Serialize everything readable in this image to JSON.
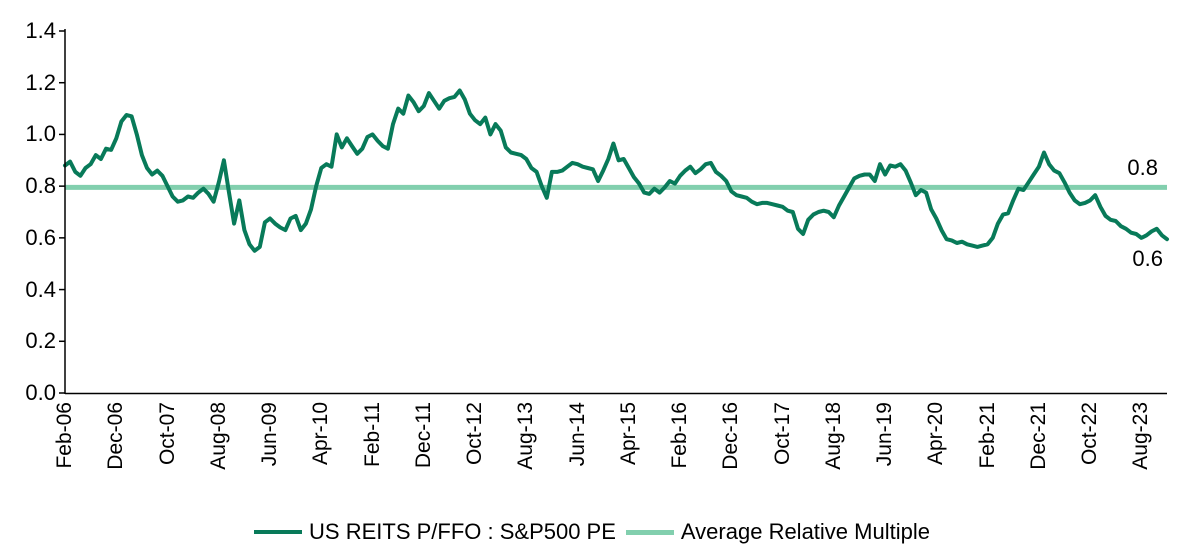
{
  "chart_data": {
    "type": "line",
    "title": "",
    "x": {
      "unit": "month",
      "start": "Feb-2006",
      "end": "Jan-2024",
      "points_per_tick": 10,
      "tick_labels": [
        "Feb-06",
        "Dec-06",
        "Oct-07",
        "Aug-08",
        "Jun-09",
        "Apr-10",
        "Feb-11",
        "Dec-11",
        "Oct-12",
        "Aug-13",
        "Jun-14",
        "Apr-15",
        "Feb-16",
        "Dec-16",
        "Oct-17",
        "Aug-18",
        "Jun-19",
        "Apr-20",
        "Feb-21",
        "Dec-21",
        "Oct-22",
        "Aug-23"
      ]
    },
    "y": {
      "min": 0.0,
      "max": 1.4,
      "tick_step": 0.2,
      "tick_labels": [
        "0.0",
        "0.2",
        "0.4",
        "0.6",
        "0.8",
        "1.0",
        "1.2",
        "1.4"
      ]
    },
    "grid": false,
    "legend_position": "bottom",
    "axis_color": "#000000",
    "series": [
      {
        "name": "US REITS P/FFO : S&P500 PE",
        "type": "line",
        "color": "#087a59",
        "stroke_width": 4,
        "values": [
          0.88,
          0.895,
          0.855,
          0.84,
          0.87,
          0.885,
          0.92,
          0.905,
          0.945,
          0.94,
          0.985,
          1.05,
          1.075,
          1.07,
          1.0,
          0.92,
          0.87,
          0.845,
          0.86,
          0.84,
          0.8,
          0.76,
          0.74,
          0.745,
          0.76,
          0.755,
          0.775,
          0.79,
          0.77,
          0.74,
          0.815,
          0.9,
          0.775,
          0.655,
          0.745,
          0.63,
          0.575,
          0.55,
          0.565,
          0.66,
          0.675,
          0.655,
          0.64,
          0.63,
          0.675,
          0.685,
          0.63,
          0.655,
          0.71,
          0.8,
          0.87,
          0.885,
          0.875,
          1.0,
          0.95,
          0.985,
          0.955,
          0.925,
          0.945,
          0.99,
          1.0,
          0.975,
          0.955,
          0.945,
          1.04,
          1.1,
          1.08,
          1.15,
          1.125,
          1.09,
          1.11,
          1.16,
          1.13,
          1.1,
          1.13,
          1.14,
          1.145,
          1.17,
          1.135,
          1.08,
          1.055,
          1.04,
          1.065,
          1.0,
          1.04,
          1.015,
          0.95,
          0.93,
          0.925,
          0.92,
          0.905,
          0.87,
          0.855,
          0.8,
          0.755,
          0.855,
          0.855,
          0.86,
          0.875,
          0.89,
          0.885,
          0.875,
          0.87,
          0.865,
          0.82,
          0.86,
          0.905,
          0.965,
          0.9,
          0.905,
          0.87,
          0.835,
          0.81,
          0.775,
          0.77,
          0.79,
          0.775,
          0.795,
          0.82,
          0.81,
          0.84,
          0.86,
          0.875,
          0.85,
          0.865,
          0.885,
          0.89,
          0.855,
          0.84,
          0.82,
          0.78,
          0.765,
          0.76,
          0.755,
          0.74,
          0.73,
          0.735,
          0.735,
          0.73,
          0.725,
          0.72,
          0.705,
          0.7,
          0.635,
          0.615,
          0.67,
          0.69,
          0.7,
          0.705,
          0.7,
          0.68,
          0.725,
          0.76,
          0.795,
          0.83,
          0.84,
          0.845,
          0.845,
          0.82,
          0.885,
          0.845,
          0.88,
          0.875,
          0.885,
          0.86,
          0.815,
          0.765,
          0.785,
          0.775,
          0.71,
          0.675,
          0.63,
          0.595,
          0.59,
          0.58,
          0.585,
          0.575,
          0.57,
          0.565,
          0.57,
          0.575,
          0.6,
          0.655,
          0.69,
          0.695,
          0.745,
          0.79,
          0.785,
          0.815,
          0.845,
          0.875,
          0.93,
          0.885,
          0.86,
          0.85,
          0.815,
          0.775,
          0.745,
          0.73,
          0.735,
          0.745,
          0.765,
          0.72,
          0.685,
          0.67,
          0.665,
          0.645,
          0.635,
          0.62,
          0.615,
          0.6,
          0.61,
          0.625,
          0.635,
          0.61,
          0.595
        ]
      },
      {
        "name": "Average Relative Multiple",
        "type": "horizontal-line",
        "color": "#82cfae",
        "stroke_width": 5,
        "value": 0.795
      }
    ],
    "annotations": [
      {
        "text": "0.8",
        "refers_to": "Average Relative Multiple line"
      },
      {
        "text": "0.6",
        "refers_to": "series end value"
      }
    ]
  }
}
